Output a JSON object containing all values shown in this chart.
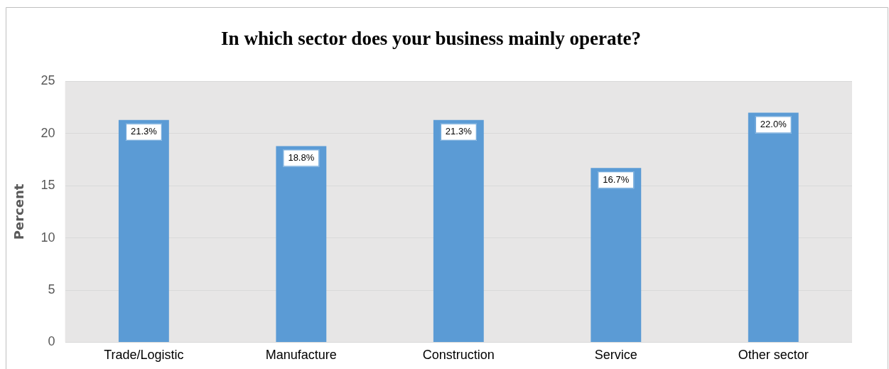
{
  "chart_data": {
    "type": "bar",
    "title": "In which sector does your business mainly operate?",
    "ylabel": "Percent",
    "categories": [
      "Trade/Logistic",
      "Manufacture",
      "Construction",
      "Service",
      "Other sector"
    ],
    "values": [
      21.3,
      18.8,
      21.3,
      16.7,
      22.0
    ],
    "value_labels": [
      "21.3%",
      "18.8%",
      "21.3%",
      "16.7%",
      "22.0%"
    ],
    "color": "#5b9bd5",
    "ylim": [
      0,
      25
    ],
    "yticks": [
      0,
      5,
      10,
      15,
      20,
      25
    ],
    "grid": "y",
    "legend": false
  }
}
